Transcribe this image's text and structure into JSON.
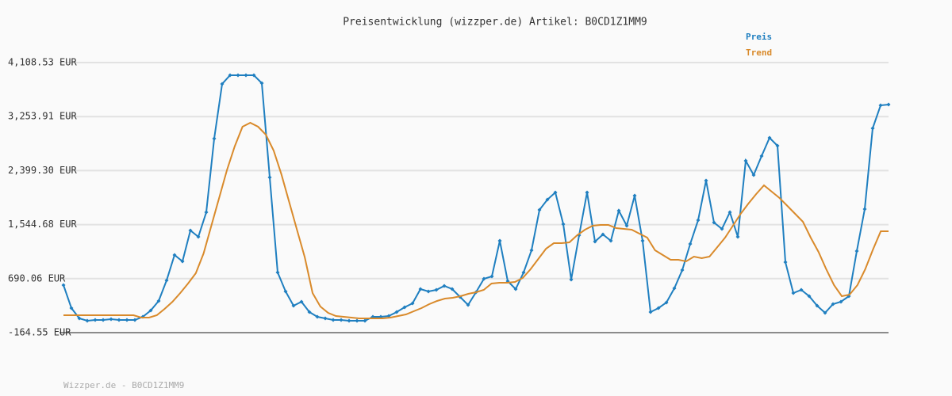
{
  "chart_data": {
    "type": "line",
    "title": "Preisentwicklung (wizzper.de) Artikel: B0CD1Z1MM9",
    "footer": "Wizzper.de - B0CD1Z1MM9",
    "ylim": [
      -164.55,
      4108.53
    ],
    "yticks": [
      {
        "value": -164.55,
        "label": "-164.55 EUR"
      },
      {
        "value": 690.06,
        "label": "690.06 EUR"
      },
      {
        "value": 1544.68,
        "label": "1,544.68 EUR"
      },
      {
        "value": 2399.3,
        "label": "2,399.30 EUR"
      },
      {
        "value": 3253.91,
        "label": "3,253.91 EUR"
      },
      {
        "value": 4108.53,
        "label": "4,108.53 EUR"
      }
    ],
    "grid": true,
    "legend": "top-right",
    "series": [
      {
        "name": "Preis",
        "color": "#1f7fc0",
        "markers": true,
        "values": [
          587,
          224,
          61,
          23,
          36,
          36,
          48,
          36,
          36,
          36,
          86,
          186,
          337,
          662,
          1063,
          963,
          1452,
          1352,
          1740,
          2906,
          3770,
          3908,
          3908,
          3908,
          3908,
          3783,
          2291,
          788,
          487,
          261,
          324,
          161,
          86,
          61,
          36,
          36,
          23,
          23,
          23,
          86,
          86,
          99,
          161,
          236,
          299,
          525,
          487,
          512,
          575,
          525,
          399,
          274,
          474,
          688,
          725,
          1289,
          650,
          525,
          788,
          1139,
          1778,
          1941,
          2053,
          1552,
          675,
          1377,
          2053,
          1277,
          1389,
          1289,
          1765,
          1527,
          2003,
          1289,
          161,
          224,
          312,
          537,
          825,
          1239,
          1615,
          2241,
          1577,
          1477,
          1740,
          1352,
          2555,
          2329,
          2630,
          2918,
          2793,
          951,
          462,
          512,
          412,
          261,
          149,
          287,
          324,
          412,
          1126,
          1790,
          3068,
          3432,
          3445
        ]
      },
      {
        "name": "Trend",
        "color": "#d98a2b",
        "markers": false,
        "values": [
          111,
          111,
          111,
          111,
          111,
          111,
          111,
          111,
          111,
          111,
          74,
          74,
          111,
          211,
          324,
          462,
          613,
          775,
          1089,
          1527,
          1966,
          2404,
          2780,
          3093,
          3156,
          3093,
          2968,
          2717,
          2341,
          1903,
          1465,
          1026,
          462,
          249,
          149,
          99,
          86,
          74,
          61,
          61,
          61,
          61,
          74,
          99,
          124,
          174,
          224,
          287,
          337,
          374,
          387,
          412,
          449,
          474,
          512,
          613,
          625,
          625,
          638,
          700,
          838,
          1001,
          1164,
          1252,
          1252,
          1264,
          1377,
          1465,
          1527,
          1540,
          1540,
          1490,
          1477,
          1465,
          1402,
          1339,
          1139,
          1063,
          988,
          988,
          963,
          1038,
          1013,
          1038,
          1189,
          1339,
          1527,
          1715,
          1878,
          2028,
          2166,
          2066,
          1966,
          1840,
          1715,
          1590,
          1339,
          1114,
          838,
          587,
          412,
          437,
          587,
          838,
          1151,
          1440,
          1440
        ]
      }
    ]
  }
}
